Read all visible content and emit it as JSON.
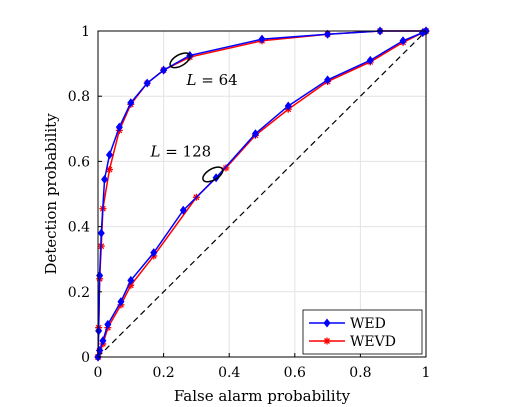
{
  "chart_data": {
    "type": "line",
    "title": "",
    "xlabel": "False alarm probability",
    "ylabel": "Detection probability",
    "xlim": [
      0,
      1
    ],
    "ylim": [
      0,
      1
    ],
    "xticks": [
      0,
      0.2,
      0.4,
      0.6,
      0.8,
      1
    ],
    "yticks": [
      0,
      0.2,
      0.4,
      0.6,
      0.8,
      1
    ],
    "xtick_labels": [
      "0",
      "0.2",
      "0.4",
      "0.6",
      "0.8",
      "1"
    ],
    "ytick_labels": [
      "0",
      "0.2",
      "0.4",
      "0.6",
      "0.8",
      "1"
    ],
    "grid": true,
    "legend_position": "bottom-right",
    "colors": {
      "WED": "#0000ff",
      "WEVD": "#ff0000",
      "reference": "#000000"
    },
    "series": [
      {
        "name": "WED",
        "group": "L64",
        "marker": "diamond",
        "x": [
          0,
          0.002,
          0.005,
          0.01,
          0.02,
          0.035,
          0.065,
          0.1,
          0.15,
          0.2,
          0.28,
          0.5,
          0.7,
          0.86,
          1
        ],
        "y": [
          0,
          0.08,
          0.25,
          0.38,
          0.545,
          0.62,
          0.705,
          0.78,
          0.84,
          0.88,
          0.925,
          0.975,
          0.99,
          1,
          1
        ]
      },
      {
        "name": "WEVD",
        "group": "L64",
        "marker": "star",
        "x": [
          0,
          0.002,
          0.005,
          0.01,
          0.015,
          0.035,
          0.065,
          0.1,
          0.15,
          0.2,
          0.28,
          0.5,
          0.7,
          0.86,
          1
        ],
        "y": [
          0,
          0.09,
          0.24,
          0.34,
          0.455,
          0.575,
          0.695,
          0.775,
          0.84,
          0.88,
          0.92,
          0.97,
          0.99,
          1,
          1
        ]
      },
      {
        "name": "WED",
        "group": "L128",
        "marker": "diamond",
        "x": [
          0,
          0.005,
          0.015,
          0.03,
          0.07,
          0.1,
          0.17,
          0.26,
          0.36,
          0.48,
          0.58,
          0.7,
          0.83,
          0.93,
          0.99,
          1
        ],
        "y": [
          0,
          0.02,
          0.05,
          0.1,
          0.17,
          0.235,
          0.32,
          0.45,
          0.55,
          0.685,
          0.77,
          0.85,
          0.91,
          0.97,
          0.995,
          1
        ]
      },
      {
        "name": "WEVD",
        "group": "L128",
        "marker": "star",
        "x": [
          0,
          0.005,
          0.015,
          0.03,
          0.07,
          0.1,
          0.17,
          0.3,
          0.39,
          0.48,
          0.58,
          0.7,
          0.83,
          0.93,
          0.99,
          1
        ],
        "y": [
          0,
          0.02,
          0.04,
          0.09,
          0.16,
          0.22,
          0.31,
          0.49,
          0.58,
          0.68,
          0.76,
          0.845,
          0.905,
          0.965,
          0.995,
          1
        ]
      }
    ],
    "reference_line": {
      "style": "dashed",
      "x": [
        0,
        1
      ],
      "y": [
        0,
        1
      ]
    },
    "annotations": [
      {
        "text": "L = 64",
        "ellipse_at": [
          0.25,
          0.91
        ],
        "text_at": [
          0.27,
          0.835
        ]
      },
      {
        "text": "L = 128",
        "ellipse_at": [
          0.35,
          0.56
        ],
        "text_at": [
          0.16,
          0.615
        ]
      }
    ],
    "legend": [
      {
        "label": "WED",
        "color": "#0000ff",
        "marker": "diamond"
      },
      {
        "label": "WEVD",
        "color": "#ff0000",
        "marker": "star"
      }
    ]
  }
}
